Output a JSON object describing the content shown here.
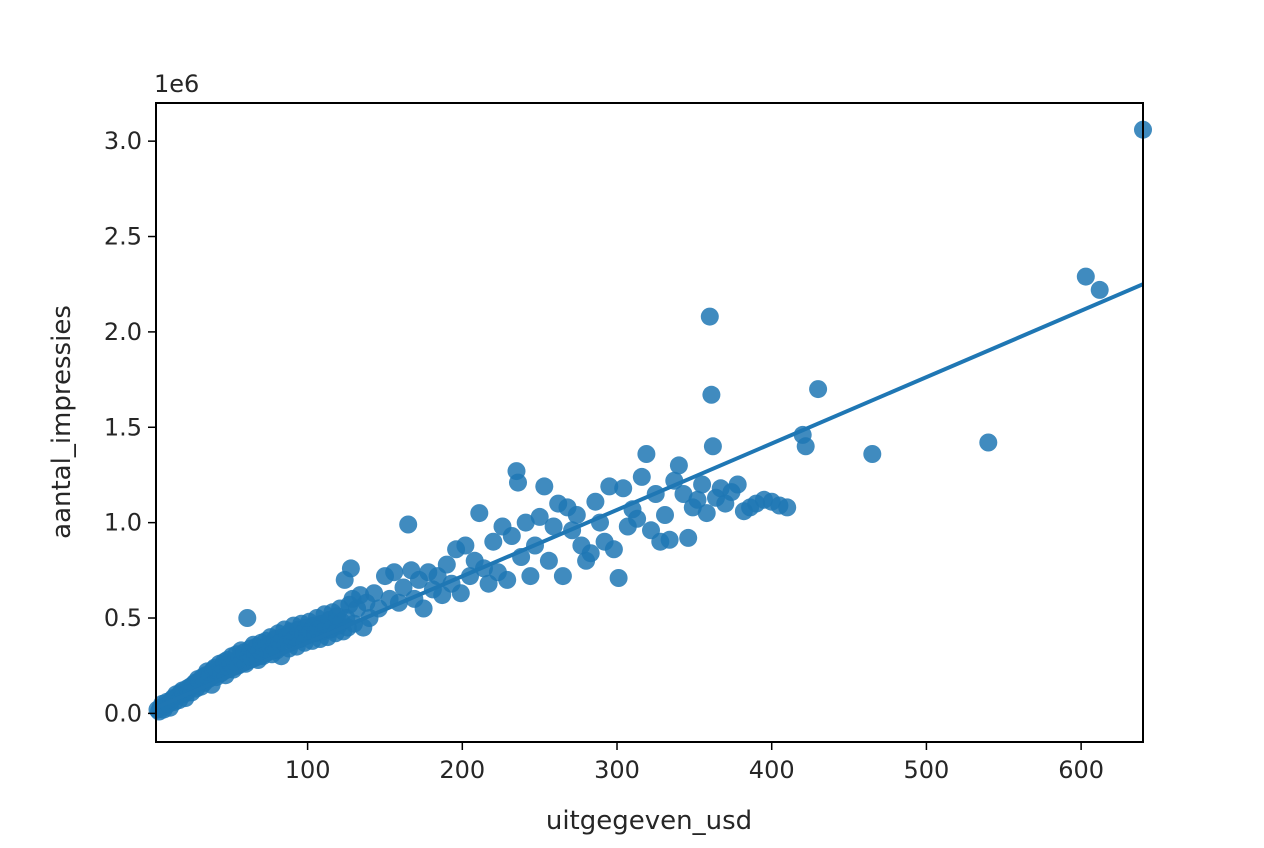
{
  "chart_data": {
    "type": "scatter",
    "title": "",
    "xlabel": "uitgegeven_usd",
    "ylabel": "aantal_impressies",
    "y_offset_label": "1e6",
    "xlim": [
      2,
      640
    ],
    "ylim": [
      -0.15,
      3.2
    ],
    "xticks": [
      100,
      200,
      300,
      400,
      500,
      600
    ],
    "xtick_labels": [
      "100",
      "200",
      "300",
      "400",
      "500",
      "600"
    ],
    "yticks": [
      0.0,
      0.5,
      1.0,
      1.5,
      2.0,
      2.5,
      3.0
    ],
    "ytick_labels": [
      "0.0",
      "0.5",
      "1.0",
      "1.5",
      "2.0",
      "2.5",
      "3.0"
    ],
    "grid": false,
    "legend": "none",
    "regression_line": {
      "x": [
        2,
        640
      ],
      "y": [
        0.03,
        2.25
      ]
    },
    "series": [
      {
        "color": "#1f77b4",
        "points": [
          [
            3,
            0.02
          ],
          [
            4,
            0.01
          ],
          [
            5,
            0.03
          ],
          [
            6,
            0.05
          ],
          [
            7,
            0.02
          ],
          [
            8,
            0.04
          ],
          [
            9,
            0.06
          ],
          [
            10,
            0.05
          ],
          [
            11,
            0.03
          ],
          [
            12,
            0.07
          ],
          [
            13,
            0.08
          ],
          [
            14,
            0.06
          ],
          [
            15,
            0.1
          ],
          [
            16,
            0.09
          ],
          [
            17,
            0.07
          ],
          [
            18,
            0.11
          ],
          [
            19,
            0.12
          ],
          [
            20,
            0.1
          ],
          [
            21,
            0.08
          ],
          [
            22,
            0.13
          ],
          [
            23,
            0.12
          ],
          [
            24,
            0.14
          ],
          [
            25,
            0.11
          ],
          [
            26,
            0.15
          ],
          [
            27,
            0.16
          ],
          [
            28,
            0.13
          ],
          [
            29,
            0.18
          ],
          [
            30,
            0.17
          ],
          [
            31,
            0.14
          ],
          [
            32,
            0.19
          ],
          [
            33,
            0.16
          ],
          [
            34,
            0.2
          ],
          [
            35,
            0.22
          ],
          [
            36,
            0.18
          ],
          [
            37,
            0.21
          ],
          [
            38,
            0.15
          ],
          [
            39,
            0.23
          ],
          [
            40,
            0.24
          ],
          [
            41,
            0.19
          ],
          [
            42,
            0.22
          ],
          [
            43,
            0.26
          ],
          [
            44,
            0.21
          ],
          [
            45,
            0.25
          ],
          [
            46,
            0.27
          ],
          [
            47,
            0.2
          ],
          [
            48,
            0.28
          ],
          [
            49,
            0.24
          ],
          [
            50,
            0.26
          ],
          [
            51,
            0.3
          ],
          [
            52,
            0.23
          ],
          [
            53,
            0.27
          ],
          [
            54,
            0.31
          ],
          [
            55,
            0.25
          ],
          [
            56,
            0.29
          ],
          [
            57,
            0.33
          ],
          [
            58,
            0.28
          ],
          [
            59,
            0.32
          ],
          [
            60,
            0.26
          ],
          [
            61,
            0.5
          ],
          [
            62,
            0.3
          ],
          [
            63,
            0.34
          ],
          [
            64,
            0.29
          ],
          [
            65,
            0.36
          ],
          [
            66,
            0.31
          ],
          [
            67,
            0.35
          ],
          [
            68,
            0.28
          ],
          [
            69,
            0.33
          ],
          [
            70,
            0.37
          ],
          [
            71,
            0.3
          ],
          [
            72,
            0.34
          ],
          [
            73,
            0.38
          ],
          [
            74,
            0.32
          ],
          [
            75,
            0.36
          ],
          [
            76,
            0.4
          ],
          [
            77,
            0.31
          ],
          [
            78,
            0.35
          ],
          [
            79,
            0.39
          ],
          [
            80,
            0.33
          ],
          [
            81,
            0.42
          ],
          [
            82,
            0.37
          ],
          [
            83,
            0.3
          ],
          [
            84,
            0.4
          ],
          [
            85,
            0.44
          ],
          [
            86,
            0.36
          ],
          [
            87,
            0.41
          ],
          [
            88,
            0.34
          ],
          [
            89,
            0.43
          ],
          [
            90,
            0.38
          ],
          [
            91,
            0.46
          ],
          [
            92,
            0.4
          ],
          [
            93,
            0.35
          ],
          [
            94,
            0.44
          ],
          [
            95,
            0.39
          ],
          [
            96,
            0.47
          ],
          [
            97,
            0.42
          ],
          [
            98,
            0.37
          ],
          [
            99,
            0.45
          ],
          [
            100,
            0.41
          ],
          [
            101,
            0.48
          ],
          [
            102,
            0.43
          ],
          [
            103,
            0.38
          ],
          [
            104,
            0.46
          ],
          [
            105,
            0.42
          ],
          [
            106,
            0.5
          ],
          [
            107,
            0.44
          ],
          [
            108,
            0.39
          ],
          [
            109,
            0.47
          ],
          [
            110,
            0.43
          ],
          [
            111,
            0.52
          ],
          [
            112,
            0.45
          ],
          [
            113,
            0.4
          ],
          [
            114,
            0.49
          ],
          [
            115,
            0.44
          ],
          [
            116,
            0.53
          ],
          [
            117,
            0.47
          ],
          [
            118,
            0.42
          ],
          [
            119,
            0.51
          ],
          [
            120,
            0.46
          ],
          [
            121,
            0.55
          ],
          [
            122,
            0.48
          ],
          [
            123,
            0.43
          ],
          [
            124,
            0.7
          ],
          [
            125,
            0.5
          ],
          [
            126,
            0.45
          ],
          [
            127,
            0.57
          ],
          [
            128,
            0.76
          ],
          [
            129,
            0.6
          ],
          [
            130,
            0.47
          ],
          [
            132,
            0.55
          ],
          [
            134,
            0.62
          ],
          [
            136,
            0.45
          ],
          [
            138,
            0.58
          ],
          [
            140,
            0.5
          ],
          [
            143,
            0.63
          ],
          [
            146,
            0.55
          ],
          [
            150,
            0.72
          ],
          [
            153,
            0.6
          ],
          [
            156,
            0.74
          ],
          [
            159,
            0.58
          ],
          [
            162,
            0.66
          ],
          [
            165,
            0.99
          ],
          [
            167,
            0.75
          ],
          [
            169,
            0.6
          ],
          [
            172,
            0.7
          ],
          [
            175,
            0.55
          ],
          [
            178,
            0.74
          ],
          [
            181,
            0.65
          ],
          [
            184,
            0.72
          ],
          [
            187,
            0.62
          ],
          [
            190,
            0.78
          ],
          [
            193,
            0.68
          ],
          [
            196,
            0.86
          ],
          [
            199,
            0.63
          ],
          [
            202,
            0.88
          ],
          [
            205,
            0.72
          ],
          [
            208,
            0.8
          ],
          [
            211,
            1.05
          ],
          [
            214,
            0.76
          ],
          [
            217,
            0.68
          ],
          [
            220,
            0.9
          ],
          [
            223,
            0.74
          ],
          [
            226,
            0.98
          ],
          [
            229,
            0.7
          ],
          [
            232,
            0.93
          ],
          [
            235,
            1.27
          ],
          [
            236,
            1.21
          ],
          [
            238,
            0.82
          ],
          [
            241,
            1.0
          ],
          [
            244,
            0.72
          ],
          [
            247,
            0.88
          ],
          [
            250,
            1.03
          ],
          [
            253,
            1.19
          ],
          [
            256,
            0.8
          ],
          [
            259,
            0.98
          ],
          [
            262,
            1.1
          ],
          [
            265,
            0.72
          ],
          [
            268,
            1.08
          ],
          [
            271,
            0.96
          ],
          [
            274,
            1.04
          ],
          [
            277,
            0.88
          ],
          [
            280,
            0.8
          ],
          [
            283,
            0.84
          ],
          [
            286,
            1.11
          ],
          [
            289,
            1.0
          ],
          [
            292,
            0.9
          ],
          [
            295,
            1.19
          ],
          [
            298,
            0.86
          ],
          [
            301,
            0.71
          ],
          [
            304,
            1.18
          ],
          [
            307,
            0.98
          ],
          [
            310,
            1.07
          ],
          [
            313,
            1.02
          ],
          [
            316,
            1.24
          ],
          [
            319,
            1.36
          ],
          [
            322,
            0.96
          ],
          [
            325,
            1.15
          ],
          [
            328,
            0.9
          ],
          [
            331,
            1.04
          ],
          [
            334,
            0.91
          ],
          [
            337,
            1.22
          ],
          [
            340,
            1.3
          ],
          [
            343,
            1.15
          ],
          [
            346,
            0.92
          ],
          [
            349,
            1.08
          ],
          [
            352,
            1.12
          ],
          [
            355,
            1.2
          ],
          [
            358,
            1.05
          ],
          [
            360,
            2.08
          ],
          [
            361,
            1.67
          ],
          [
            362,
            1.4
          ],
          [
            364,
            1.13
          ],
          [
            367,
            1.18
          ],
          [
            370,
            1.1
          ],
          [
            374,
            1.16
          ],
          [
            378,
            1.2
          ],
          [
            382,
            1.06
          ],
          [
            386,
            1.08
          ],
          [
            390,
            1.1
          ],
          [
            395,
            1.12
          ],
          [
            400,
            1.11
          ],
          [
            405,
            1.09
          ],
          [
            410,
            1.08
          ],
          [
            420,
            1.46
          ],
          [
            422,
            1.4
          ],
          [
            430,
            1.7
          ],
          [
            465,
            1.36
          ],
          [
            540,
            1.42
          ],
          [
            603,
            2.29
          ],
          [
            612,
            2.22
          ],
          [
            640,
            3.06
          ]
        ]
      }
    ]
  }
}
